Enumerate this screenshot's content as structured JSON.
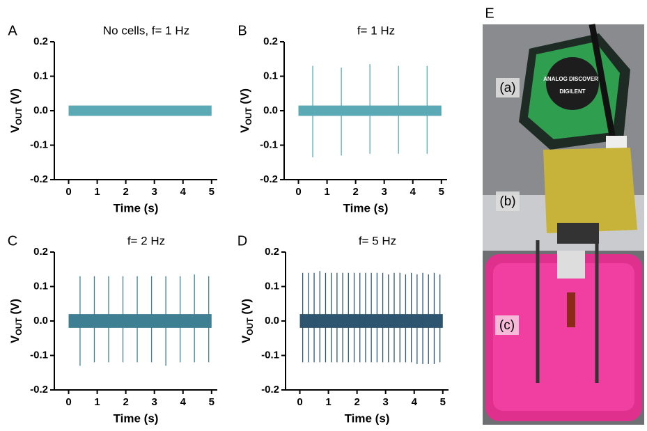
{
  "chart_data": [
    {
      "type": "line",
      "panel": "A",
      "title": "No cells, f= 1 Hz",
      "xlabel": "Time (s)",
      "ylabel": [
        "V",
        "OUT",
        " (V)"
      ],
      "xlim": [
        -0.5,
        5.2
      ],
      "ylim": [
        -0.2,
        0.2
      ],
      "xticks": [
        0,
        1,
        2,
        3,
        4,
        5
      ],
      "yticks": [
        -0.2,
        -0.1,
        {
          "value": 0,
          "label": "0.0"
        },
        0.1,
        0.2
      ],
      "color": "#5aa9b5",
      "x": [
        0,
        5
      ],
      "band": [
        -0.015,
        0.015
      ],
      "spikes": {
        "x": [],
        "high": [],
        "low": []
      }
    },
    {
      "type": "line",
      "panel": "B",
      "title": "f= 1 Hz",
      "xlabel": "Time (s)",
      "ylabel": [
        "V",
        "OUT",
        " (V)"
      ],
      "xlim": [
        -0.5,
        5.2
      ],
      "ylim": [
        -0.2,
        0.2
      ],
      "xticks": [
        0,
        1,
        2,
        3,
        4,
        5
      ],
      "yticks": [
        -0.2,
        -0.1,
        {
          "value": 0,
          "label": "0.0"
        },
        0.1,
        0.2
      ],
      "color": "#5aa9b5",
      "x": [
        0,
        5
      ],
      "band": [
        -0.015,
        0.015
      ],
      "spikes": {
        "x": [
          0.5,
          1.5,
          2.5,
          3.5,
          4.5
        ],
        "high": [
          0.13,
          0.125,
          0.135,
          0.13,
          0.13
        ],
        "low": [
          -0.135,
          -0.13,
          -0.125,
          -0.125,
          -0.125
        ]
      }
    },
    {
      "type": "line",
      "panel": "C",
      "title": "f= 2 Hz",
      "xlabel": "Time (s)",
      "ylabel": [
        "V",
        "OUT",
        " (V)"
      ],
      "xlim": [
        -0.5,
        5.2
      ],
      "ylim": [
        -0.2,
        0.2
      ],
      "xticks": [
        0,
        1,
        2,
        3,
        4,
        5
      ],
      "yticks": [
        -0.2,
        -0.1,
        {
          "value": 0,
          "label": "0.0"
        },
        0.1,
        0.2
      ],
      "color": "#3f7f94",
      "x": [
        0,
        5
      ],
      "band": [
        -0.02,
        0.02
      ],
      "spikes": {
        "x": [
          0.4,
          0.9,
          1.4,
          1.9,
          2.4,
          2.9,
          3.4,
          3.9,
          4.4,
          4.9
        ],
        "high": [
          0.13,
          0.13,
          0.13,
          0.13,
          0.13,
          0.13,
          0.13,
          0.13,
          0.135,
          0.13
        ],
        "low": [
          -0.13,
          -0.12,
          -0.12,
          -0.12,
          -0.12,
          -0.12,
          -0.13,
          -0.12,
          -0.12,
          -0.12
        ]
      }
    },
    {
      "type": "line",
      "panel": "D",
      "title": "f= 5 Hz",
      "xlabel": "Time (s)",
      "ylabel": [
        "V",
        "OUT",
        " (V)"
      ],
      "xlim": [
        -0.5,
        5.2
      ],
      "ylim": [
        -0.2,
        0.2
      ],
      "xticks": [
        0,
        1,
        2,
        3,
        4,
        5
      ],
      "yticks": [
        -0.2,
        -0.1,
        {
          "value": 0,
          "label": "0.0"
        },
        0.1,
        0.2
      ],
      "color": "#2d5570",
      "x": [
        0,
        5
      ],
      "band": [
        -0.02,
        0.02
      ],
      "spikes": {
        "x": [
          0.1,
          0.3,
          0.5,
          0.7,
          0.9,
          1.1,
          1.3,
          1.5,
          1.7,
          1.9,
          2.1,
          2.3,
          2.5,
          2.7,
          2.9,
          3.1,
          3.3,
          3.5,
          3.7,
          3.9,
          4.1,
          4.3,
          4.5,
          4.7,
          4.9
        ],
        "high": [
          0.14,
          0.14,
          0.14,
          0.145,
          0.14,
          0.14,
          0.14,
          0.14,
          0.14,
          0.14,
          0.14,
          0.14,
          0.14,
          0.14,
          0.14,
          0.135,
          0.14,
          0.14,
          0.135,
          0.14,
          0.135,
          0.14,
          0.135,
          0.14,
          0.135
        ],
        "low": [
          -0.12,
          -0.12,
          -0.12,
          -0.12,
          -0.12,
          -0.12,
          -0.12,
          -0.12,
          -0.12,
          -0.12,
          -0.12,
          -0.12,
          -0.12,
          -0.12,
          -0.12,
          -0.12,
          -0.12,
          -0.12,
          -0.12,
          -0.12,
          -0.125,
          -0.125,
          -0.125,
          -0.125,
          -0.12
        ]
      }
    }
  ],
  "photo": {
    "panel": "E",
    "labels": [
      "(a)",
      "(b)",
      "(c)"
    ],
    "brand": "ANALOG DISCOVERY",
    "maker": "DIGILENT"
  }
}
